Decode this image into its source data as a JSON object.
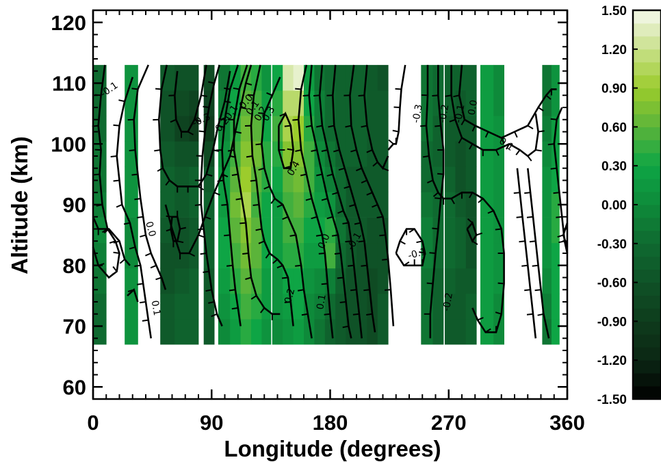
{
  "chart_data": {
    "type": "heatmap",
    "title": "",
    "xlabel": "Longitude (degrees)",
    "ylabel": "Altitude (km)",
    "xlim": [
      0,
      360
    ],
    "ylim": [
      58,
      122
    ],
    "xticks": [
      "0",
      "90",
      "180",
      "270",
      "360"
    ],
    "yticks": [
      "60",
      "70",
      "80",
      "90",
      "100",
      "110",
      "120"
    ],
    "colorbar": {
      "range": [
        -1.5,
        1.5
      ],
      "ticks": [
        "1.50",
        "1.20",
        "0.90",
        "0.60",
        "0.30",
        "0.00",
        "-0.30",
        "-0.60",
        "-0.90",
        "-1.20",
        "-1.50"
      ],
      "colors": [
        "#000000",
        "#0b2614",
        "#0e3c1c",
        "#0f5227",
        "#0f6a30",
        "#0e8a3a",
        "#0ea545",
        "#5bb43a",
        "#9ccc2c",
        "#c8e08a",
        "#f6f9ee"
      ]
    },
    "grid": false,
    "data_altitude_range": [
      67,
      113
    ],
    "columns": [
      {
        "lon_start": 0,
        "lon_end": 10,
        "values": [
          -0.3,
          -0.3,
          -0.2,
          -0.1,
          0.0,
          -0.1,
          -0.2,
          -0.2,
          -0.3,
          -0.3,
          -0.3
        ]
      },
      {
        "lon_start": 24,
        "lon_end": 34,
        "values": [
          0.1,
          0.1,
          0.1,
          0.0,
          0.0,
          0.1,
          0.1,
          0.1,
          0.1,
          0.1,
          0.1
        ]
      },
      {
        "lon_start": 51,
        "lon_end": 62,
        "values": [
          -0.5,
          -0.5,
          -0.6,
          -0.6,
          -0.5,
          -0.4,
          -0.4,
          -0.5,
          -0.6,
          -0.6,
          -0.5
        ]
      },
      {
        "lon_start": 62,
        "lon_end": 73,
        "values": [
          -0.4,
          -0.4,
          -0.5,
          -0.6,
          -0.6,
          -0.5,
          -0.5,
          -0.6,
          -0.8,
          -0.7,
          -0.6
        ]
      },
      {
        "lon_start": 73,
        "lon_end": 80,
        "values": [
          -0.4,
          -0.4,
          -0.4,
          -0.5,
          -0.5,
          -0.4,
          -0.4,
          -0.6,
          -0.9,
          -0.8,
          -0.6
        ]
      },
      {
        "lon_start": 84,
        "lon_end": 92,
        "values": [
          -0.5,
          -0.5,
          -0.5,
          -0.4,
          -0.4,
          -0.4,
          -0.5,
          -0.7,
          -0.9,
          -0.8,
          -0.7
        ]
      },
      {
        "lon_start": 95,
        "lon_end": 104,
        "values": [
          0.0,
          0.1,
          0.2,
          0.3,
          0.3,
          0.2,
          0.2,
          0.1,
          0.0,
          -0.1,
          -0.2
        ]
      },
      {
        "lon_start": 104,
        "lon_end": 112,
        "values": [
          0.2,
          0.3,
          0.4,
          0.5,
          0.6,
          0.7,
          0.6,
          0.5,
          0.4,
          0.3,
          0.2
        ]
      },
      {
        "lon_start": 112,
        "lon_end": 120,
        "values": [
          0.4,
          0.5,
          0.6,
          0.7,
          0.8,
          1.0,
          0.9,
          0.8,
          0.7,
          0.6,
          0.5
        ]
      },
      {
        "lon_start": 120,
        "lon_end": 128,
        "values": [
          0.3,
          0.4,
          0.5,
          0.6,
          0.6,
          0.5,
          0.6,
          0.7,
          0.6,
          0.5,
          0.4
        ]
      },
      {
        "lon_start": 128,
        "lon_end": 135,
        "values": [
          0.1,
          0.2,
          0.2,
          0.3,
          0.3,
          0.3,
          0.4,
          0.4,
          0.3,
          0.2,
          0.1
        ]
      },
      {
        "lon_start": 136,
        "lon_end": 144,
        "values": [
          0.0,
          0.1,
          0.1,
          0.2,
          0.2,
          0.2,
          0.3,
          0.4,
          0.5,
          0.4,
          0.3
        ]
      },
      {
        "lon_start": 144,
        "lon_end": 152,
        "values": [
          0.1,
          0.2,
          0.3,
          0.4,
          0.5,
          0.5,
          0.6,
          0.8,
          1.0,
          1.1,
          1.3
        ]
      },
      {
        "lon_start": 152,
        "lon_end": 160,
        "values": [
          0.2,
          0.3,
          0.3,
          0.4,
          0.5,
          0.6,
          0.7,
          0.8,
          0.9,
          1.1,
          1.4
        ]
      },
      {
        "lon_start": 160,
        "lon_end": 168,
        "values": [
          0.0,
          0.0,
          0.1,
          0.2,
          0.3,
          0.4,
          0.5,
          0.5,
          0.4,
          0.3,
          0.2
        ]
      },
      {
        "lon_start": 168,
        "lon_end": 176,
        "values": [
          -0.2,
          -0.1,
          0.0,
          0.2,
          0.3,
          0.2,
          0.1,
          0.0,
          -0.1,
          -0.1,
          -0.2
        ]
      },
      {
        "lon_start": 176,
        "lon_end": 184,
        "values": [
          -0.4,
          -0.3,
          -0.1,
          0.5,
          0.4,
          0.1,
          -0.1,
          -0.2,
          -0.3,
          -0.3,
          -0.3
        ]
      },
      {
        "lon_start": 184,
        "lon_end": 192,
        "values": [
          -0.5,
          -0.5,
          -0.4,
          -0.3,
          -0.2,
          -0.3,
          -0.3,
          -0.4,
          -0.4,
          -0.4,
          -0.4
        ]
      },
      {
        "lon_start": 192,
        "lon_end": 200,
        "values": [
          -0.6,
          -0.6,
          -0.6,
          -0.5,
          -0.5,
          -0.5,
          -0.5,
          -0.4,
          -0.4,
          -0.4,
          -0.4
        ]
      },
      {
        "lon_start": 200,
        "lon_end": 208,
        "values": [
          -0.6,
          -0.6,
          -0.6,
          -0.6,
          -0.5,
          -0.5,
          -0.5,
          -0.4,
          -0.4,
          -0.4,
          -0.4
        ]
      },
      {
        "lon_start": 208,
        "lon_end": 216,
        "values": [
          -0.7,
          -0.7,
          -0.7,
          -0.6,
          -0.6,
          -0.5,
          -0.5,
          -0.5,
          -0.5,
          -0.5,
          -0.5
        ]
      },
      {
        "lon_start": 216,
        "lon_end": 224,
        "values": [
          -0.5,
          -0.5,
          -0.6,
          -0.6,
          -0.6,
          -0.5,
          -0.5,
          -0.5,
          -0.5,
          -0.5,
          -0.6
        ]
      },
      {
        "lon_start": 249,
        "lon_end": 258,
        "values": [
          -0.2,
          -0.2,
          -0.2,
          -0.1,
          -0.1,
          -0.2,
          -0.3,
          -0.3,
          -0.2,
          -0.2,
          -0.2
        ]
      },
      {
        "lon_start": 258,
        "lon_end": 266,
        "values": [
          -0.4,
          -0.4,
          -0.4,
          -0.3,
          -0.3,
          -0.3,
          -0.3,
          -0.4,
          -0.4,
          -0.3,
          -0.3
        ]
      },
      {
        "lon_start": 267,
        "lon_end": 275,
        "values": [
          -0.5,
          -0.5,
          -0.4,
          -0.3,
          -0.3,
          -0.3,
          -0.4,
          -0.5,
          -0.5,
          -0.4,
          -0.4
        ]
      },
      {
        "lon_start": 275,
        "lon_end": 283,
        "values": [
          -0.5,
          -0.5,
          -0.5,
          -0.4,
          -0.4,
          -0.5,
          -0.6,
          -0.6,
          -0.5,
          -0.5,
          -0.4
        ]
      },
      {
        "lon_start": 283,
        "lon_end": 291,
        "values": [
          -0.4,
          -0.4,
          -0.5,
          -0.6,
          -0.6,
          -0.6,
          -0.5,
          -0.5,
          -0.5,
          -0.4,
          -0.4
        ]
      },
      {
        "lon_start": 294,
        "lon_end": 304,
        "values": [
          0.2,
          0.2,
          0.2,
          0.2,
          0.2,
          0.2,
          0.2,
          0.2,
          0.2,
          0.2,
          0.2
        ]
      },
      {
        "lon_start": 304,
        "lon_end": 312,
        "values": [
          0.0,
          0.0,
          0.1,
          0.1,
          0.1,
          0.1,
          0.1,
          0.1,
          0.1,
          0.0,
          0.0
        ]
      },
      {
        "lon_start": 341,
        "lon_end": 348,
        "values": [
          -0.2,
          -0.1,
          0.0,
          0.1,
          0.1,
          0.1,
          0.1,
          0.0,
          -0.1,
          -0.2,
          -0.2
        ]
      },
      {
        "lon_start": 348,
        "lon_end": 354,
        "values": [
          0.3,
          0.3,
          0.3,
          0.3,
          0.4,
          0.4,
          0.3,
          0.2,
          0.2,
          0.1,
          0.1
        ]
      }
    ],
    "contour_labels": [
      {
        "text": "-0.1",
        "lon": 12,
        "alt": 109,
        "rotation": -35
      },
      {
        "text": "0.0",
        "lon": 44,
        "alt": 86,
        "rotation": 75
      },
      {
        "text": "0.1",
        "lon": 48,
        "alt": 73,
        "rotation": 80
      },
      {
        "text": "-0.3",
        "lon": 82,
        "alt": 104,
        "rotation": -25
      },
      {
        "text": "-0.2",
        "lon": 97,
        "alt": 103,
        "rotation": -50
      },
      {
        "text": "-0.1",
        "lon": 104,
        "alt": 105,
        "rotation": -55
      },
      {
        "text": "0.0",
        "lon": 116,
        "alt": 107,
        "rotation": -50
      },
      {
        "text": "0.1",
        "lon": 121,
        "alt": 106,
        "rotation": -55
      },
      {
        "text": "0.2",
        "lon": 127,
        "alt": 105,
        "rotation": -60
      },
      {
        "text": "0.3",
        "lon": 133,
        "alt": 105,
        "rotation": -60
      },
      {
        "text": "0.4",
        "lon": 152,
        "alt": 96,
        "rotation": -60
      },
      {
        "text": "0.0",
        "lon": 175,
        "alt": 84,
        "rotation": -65
      },
      {
        "text": "-0.1",
        "lon": 198,
        "alt": 84,
        "rotation": -60
      },
      {
        "text": "0.2",
        "lon": 149,
        "alt": 75,
        "rotation": -75
      },
      {
        "text": "0.1",
        "lon": 173,
        "alt": 74,
        "rotation": -80
      },
      {
        "text": "-0.3",
        "lon": 246,
        "alt": 105,
        "rotation": -80
      },
      {
        "text": "-0.1",
        "lon": 246,
        "alt": 82,
        "rotation": -15
      },
      {
        "text": "-0.2",
        "lon": 266,
        "alt": 105,
        "rotation": -80
      },
      {
        "text": "-0.1",
        "lon": 278,
        "alt": 105,
        "rotation": -80
      },
      {
        "text": "0.0",
        "lon": 288,
        "alt": 106,
        "rotation": -80
      },
      {
        "text": "0.1",
        "lon": 314,
        "alt": 100,
        "rotation": 35
      },
      {
        "text": "-0.2",
        "lon": 269,
        "alt": 74,
        "rotation": -80
      }
    ]
  }
}
